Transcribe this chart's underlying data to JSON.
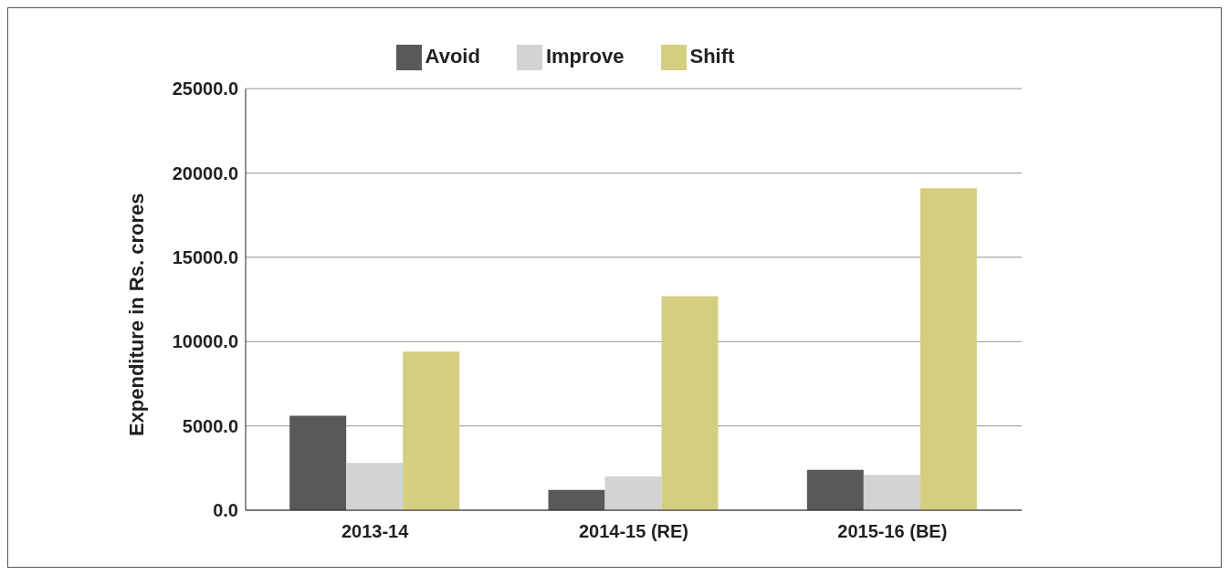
{
  "chart_data": {
    "type": "bar",
    "ylabel": "Expenditure in Rs. crores",
    "categories": [
      "2013-14",
      "2014-15 (RE)",
      "2015-16 (BE)"
    ],
    "series": [
      {
        "name": "Avoid",
        "color": "#58595b",
        "values": [
          5600,
          1200,
          2400
        ]
      },
      {
        "name": "Improve",
        "color": "#d1d3d4",
        "values": [
          2800,
          2000,
          2100
        ]
      },
      {
        "name": "Shift",
        "color": "#d4cf80",
        "values": [
          9400,
          12700,
          19100
        ]
      }
    ],
    "ylim": [
      0,
      25000
    ],
    "yticks": [
      {
        "value": 0,
        "label": "0.0"
      },
      {
        "value": 5000,
        "label": "5000.0"
      },
      {
        "value": 10000,
        "label": "10000.0"
      },
      {
        "value": 15000,
        "label": "15000.0"
      },
      {
        "value": 20000,
        "label": "20000.0"
      },
      {
        "value": 25000,
        "label": "25000.0"
      }
    ],
    "grid": "y",
    "legend": "top"
  }
}
